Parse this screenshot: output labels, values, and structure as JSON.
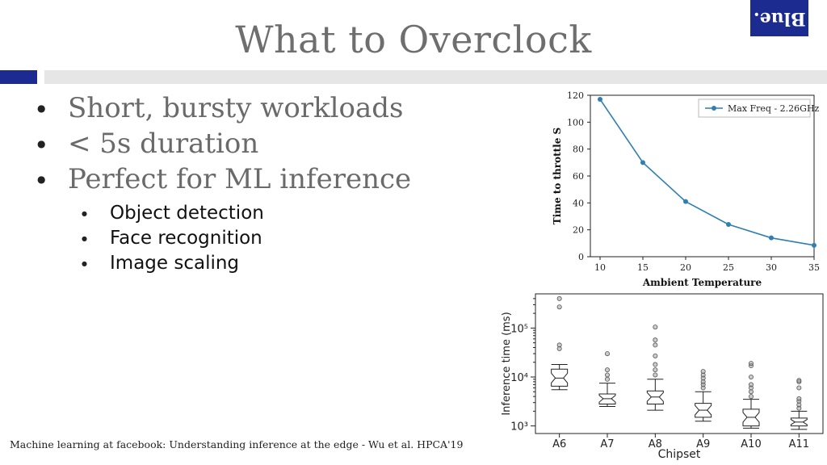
{
  "slide": {
    "title": "What to Overclock",
    "logo_text": "Blue.",
    "bullets": [
      "Short, bursty workloads",
      "< 5s duration",
      "Perfect for ML inference"
    ],
    "sub_bullets": [
      "Object detection",
      "Face recognition",
      "Image scaling"
    ],
    "citation": "Machine learning at facebook: Understanding inference at the edge - Wu et al. HPCA'19",
    "colors": {
      "accent": "#1c2b8f",
      "bar": "#e6e6e6",
      "title": "#6e6e6e",
      "line": "#2f7fb4"
    }
  },
  "chart_data": [
    {
      "type": "line",
      "xlabel": "Ambient Temperature",
      "ylabel": "Time to throttle S",
      "x": [
        10,
        15,
        20,
        25,
        30,
        35
      ],
      "series": [
        {
          "name": "Max Freq - 2.26GHz",
          "values": [
            117,
            70,
            41,
            24,
            14,
            8.5
          ]
        }
      ],
      "xlim": [
        10,
        35
      ],
      "ylim": [
        0,
        120
      ],
      "xticks": [
        "10",
        "15",
        "20",
        "25",
        "30",
        "35"
      ],
      "yticks": [
        "0",
        "20",
        "40",
        "60",
        "80",
        "100",
        "120"
      ],
      "legend": "top-right",
      "grid": false
    },
    {
      "type": "box",
      "xlabel": "Chipset",
      "ylabel": "Inference time (ms)",
      "yscale": "log",
      "ylim": [
        700,
        500000
      ],
      "yticks": [
        "10³",
        "10⁴",
        "10⁵"
      ],
      "categories": [
        "A6",
        "A7",
        "A8",
        "A9",
        "A10",
        "A11"
      ],
      "boxes": [
        {
          "q1": 6500,
          "median": 9500,
          "q3": 14500,
          "whisker_low": 5500,
          "whisker_high": 18000,
          "outliers": [
            45000,
            38000,
            270000,
            400000
          ]
        },
        {
          "q1": 2800,
          "median": 3600,
          "q3": 4500,
          "whisker_low": 2500,
          "whisker_high": 7500,
          "outliers": [
            9000,
            11000,
            14000,
            30000
          ]
        },
        {
          "q1": 2800,
          "median": 3900,
          "q3": 5200,
          "whisker_low": 2100,
          "whisker_high": 9000,
          "outliers": [
            11000,
            14000,
            18000,
            27000,
            45000,
            57000,
            105000
          ]
        },
        {
          "q1": 1500,
          "median": 2100,
          "q3": 2900,
          "whisker_low": 1250,
          "whisker_high": 5000,
          "outliers": [
            6000,
            7000,
            8000,
            9500,
            11000,
            13000
          ]
        },
        {
          "q1": 1000,
          "median": 1500,
          "q3": 2200,
          "whisker_low": 900,
          "whisker_high": 3500,
          "outliers": [
            4000,
            5000,
            6000,
            7000,
            10000,
            17000,
            19000
          ]
        },
        {
          "q1": 1000,
          "median": 1200,
          "q3": 1450,
          "whisker_low": 850,
          "whisker_high": 2000,
          "outliers": [
            2300,
            2700,
            3200,
            3600,
            6000,
            8000,
            8500
          ]
        }
      ]
    }
  ]
}
